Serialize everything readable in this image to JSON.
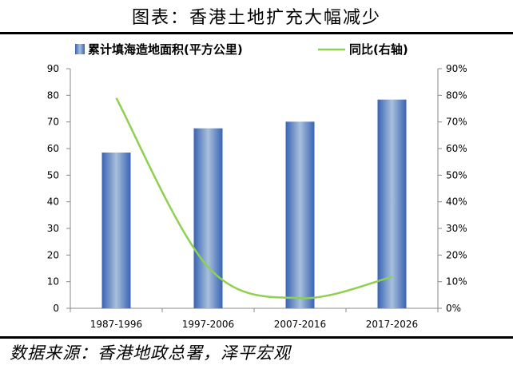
{
  "title": "图表：香港土地扩充大幅减少",
  "source": "数据来源：香港地政总署，泽平宏观",
  "colors": {
    "bar_edge": "#3a63b4",
    "bar_center": "#a8c0dc",
    "line": "#8dd14f",
    "axis": "#000000"
  },
  "chart_data": {
    "type": "bar",
    "categories": [
      "1987-1996",
      "1997-2006",
      "2007-2016",
      "2017-2026"
    ],
    "series": [
      {
        "name": "累计填海造地面积(平方公里)",
        "type": "bar",
        "axis": "left",
        "values": [
          58.5,
          67.6,
          70.1,
          78.4
        ]
      },
      {
        "name": "同比(右轴)",
        "type": "line",
        "axis": "right",
        "values": [
          79,
          15.5,
          3.8,
          11.8
        ]
      }
    ],
    "y_left": {
      "min": 0,
      "max": 90,
      "ticks": [
        "0",
        "10",
        "20",
        "30",
        "40",
        "50",
        "60",
        "70",
        "80",
        "90"
      ]
    },
    "y_right": {
      "min": 0,
      "max": 90,
      "ticks": [
        "0%",
        "10%",
        "20%",
        "30%",
        "40%",
        "50%",
        "60%",
        "70%",
        "80%",
        "90%"
      ]
    },
    "legend": "top",
    "grid": false
  }
}
